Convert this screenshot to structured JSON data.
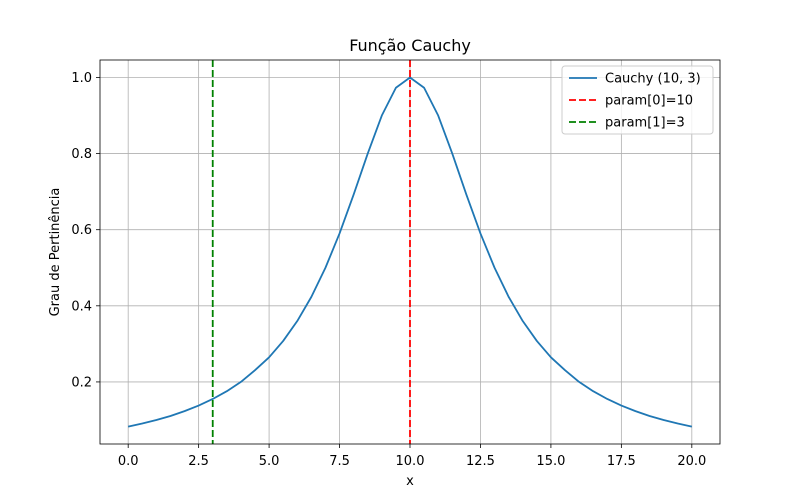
{
  "chart_data": {
    "type": "line",
    "title": "Função Cauchy",
    "xlabel": "x",
    "ylabel": "Grau de Pertinência",
    "xlim": [
      -1.0,
      21.0
    ],
    "ylim": [
      0.0369,
      1.0459
    ],
    "xticks": [
      0.0,
      2.5,
      5.0,
      7.5,
      10.0,
      12.5,
      15.0,
      17.5,
      20.0
    ],
    "xtick_labels": [
      "0.0",
      "2.5",
      "5.0",
      "7.5",
      "10.0",
      "12.5",
      "15.0",
      "17.5",
      "20.0"
    ],
    "yticks": [
      0.2,
      0.4,
      0.6,
      0.8,
      1.0
    ],
    "ytick_labels": [
      "0.2",
      "0.4",
      "0.6",
      "0.8",
      "1.0"
    ],
    "grid": true,
    "legend_position": "top-right",
    "series": [
      {
        "name": "Cauchy (10, 3)",
        "kind": "line",
        "color": "#1f77b4",
        "dash": "solid",
        "x": [
          0,
          0.5,
          1,
          1.5,
          2,
          2.5,
          3,
          3.5,
          4,
          4.5,
          5,
          5.5,
          6,
          6.5,
          7,
          7.5,
          8,
          8.5,
          9,
          9.5,
          10,
          10.5,
          11,
          11.5,
          12,
          12.5,
          13,
          13.5,
          14,
          14.5,
          15,
          15.5,
          16,
          16.5,
          17,
          17.5,
          18,
          18.5,
          19,
          19.5,
          20
        ],
        "y": [
          0.0826,
          0.0908,
          0.1,
          0.1105,
          0.1233,
          0.1379,
          0.1552,
          0.1756,
          0.2,
          0.2308,
          0.2647,
          0.3077,
          0.36,
          0.4235,
          0.5,
          0.5902,
          0.6923,
          0.8,
          0.9,
          0.973,
          1.0,
          0.973,
          0.9,
          0.8,
          0.6923,
          0.5902,
          0.5,
          0.4235,
          0.36,
          0.3077,
          0.2647,
          0.2308,
          0.2,
          0.1756,
          0.1552,
          0.1379,
          0.1233,
          0.1105,
          0.1,
          0.0908,
          0.0826
        ]
      },
      {
        "name": "param[0]=10",
        "kind": "vline",
        "color": "#ff0000",
        "dash": "dashed",
        "x": 10
      },
      {
        "name": "param[1]=3",
        "kind": "vline",
        "color": "#008000",
        "dash": "dashed",
        "x": 3
      }
    ]
  }
}
